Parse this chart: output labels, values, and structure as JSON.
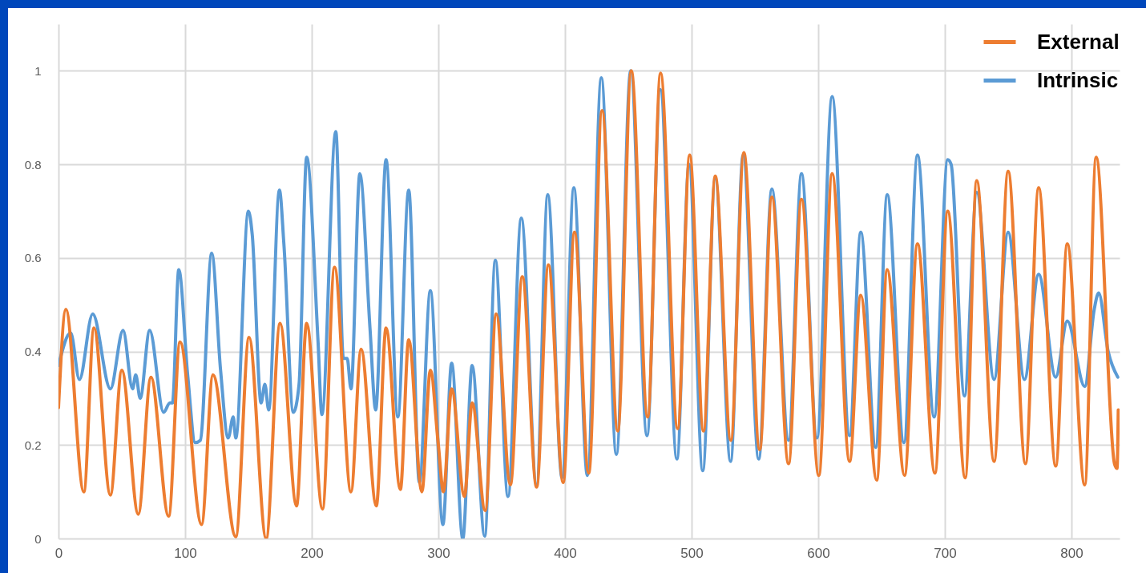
{
  "chart_data": {
    "type": "line",
    "xlim": [
      0,
      838
    ],
    "xticks": [
      0,
      100,
      200,
      300,
      400,
      500,
      600,
      700,
      800
    ],
    "ylim": [
      0,
      1.1
    ],
    "yticks": [
      0,
      0.2,
      0.4,
      0.6,
      0.8,
      1
    ],
    "grid": true,
    "legend": "top right",
    "line_style": "solid",
    "series": [
      {
        "name": "External",
        "color": "#ed7d31",
        "x": [
          0,
          5.8,
          20,
          28,
          41,
          50,
          63,
          73,
          87,
          96,
          113,
          122,
          140,
          150.5,
          164,
          175,
          188,
          196,
          208.5,
          218,
          231,
          239,
          251,
          258.7,
          270,
          276.6,
          287,
          293.7,
          300,
          304,
          310.5,
          320.6,
          326.7,
          337,
          345.7,
          356.9,
          366.3,
          377.6,
          386.9,
          398.6,
          407.5,
          418.8,
          429.3,
          441.7,
          452.4,
          465.3,
          475.5,
          489,
          498.5,
          509.4,
          518.7,
          531,
          541.3,
          553.8,
          563.4,
          576.6,
          586.8,
          600.5,
          611,
          624.8,
          633.6,
          646.2,
          654.5,
          668.2,
          678.4,
          692.2,
          702.3,
          716.1,
          725.2,
          738.9,
          750,
          763.7,
          774.1,
          787.6,
          796.7,
          810.5,
          819.5,
          834,
          836,
          837
        ],
        "values": [
          0.28,
          0.49,
          0.1,
          0.45,
          0.093,
          0.36,
          0.052,
          0.345,
          0.048,
          0.42,
          0.03,
          0.35,
          0.004,
          0.43,
          0,
          0.46,
          0.07,
          0.46,
          0.063,
          0.58,
          0.1,
          0.405,
          0.07,
          0.45,
          0.105,
          0.425,
          0.1,
          0.36,
          0.2,
          0.1,
          0.32,
          0.09,
          0.29,
          0.06,
          0.48,
          0.115,
          0.56,
          0.11,
          0.585,
          0.12,
          0.655,
          0.14,
          0.915,
          0.23,
          1.0,
          0.26,
          0.995,
          0.235,
          0.82,
          0.23,
          0.775,
          0.21,
          0.825,
          0.19,
          0.73,
          0.16,
          0.725,
          0.135,
          0.78,
          0.165,
          0.52,
          0.125,
          0.575,
          0.135,
          0.63,
          0.14,
          0.7,
          0.13,
          0.765,
          0.165,
          0.785,
          0.16,
          0.75,
          0.155,
          0.63,
          0.115,
          0.815,
          0.16,
          0.15,
          0.275
        ]
      },
      {
        "name": "Intrinsic",
        "color": "#5b9bd5",
        "x": [
          0,
          9.6,
          16.5,
          27,
          41,
          51,
          58.5,
          61,
          64.5,
          72,
          83,
          88,
          90,
          95,
          102,
          108,
          112,
          121,
          128,
          134,
          138,
          140,
          150,
          153,
          160,
          163,
          166,
          174.5,
          178,
          185.5,
          190,
          196,
          205,
          208,
          219,
          225,
          228,
          231,
          238,
          246,
          250.5,
          258.7,
          268,
          276.6,
          285,
          293.7,
          303.6,
          310.5,
          319.3,
          326.7,
          336.6,
          345,
          355,
          365.5,
          377.6,
          386.4,
          397.7,
          407,
          417.7,
          428.7,
          440.6,
          451.9,
          464.8,
          475.3,
          488.4,
          498,
          508.8,
          518.7,
          530.8,
          540.7,
          553,
          563.4,
          576.6,
          586.8,
          599,
          611,
          624.8,
          633.6,
          645.4,
          654.5,
          667.7,
          678.4,
          691.6,
          702.3,
          705,
          715.5,
          725.2,
          738.9,
          750,
          762.9,
          774.1,
          787.6,
          796.7,
          810.5,
          818,
          821.5,
          829,
          836.6
        ],
        "values": [
          0.37,
          0.44,
          0.34,
          0.48,
          0.32,
          0.445,
          0.32,
          0.35,
          0.3,
          0.445,
          0.27,
          0.29,
          0.29,
          0.575,
          0.35,
          0.205,
          0.21,
          0.61,
          0.36,
          0.215,
          0.26,
          0.215,
          0.7,
          0.65,
          0.29,
          0.33,
          0.275,
          0.745,
          0.63,
          0.27,
          0.33,
          0.815,
          0.42,
          0.265,
          0.87,
          0.385,
          0.385,
          0.32,
          0.78,
          0.45,
          0.275,
          0.81,
          0.26,
          0.745,
          0.12,
          0.53,
          0.03,
          0.375,
          0,
          0.37,
          0.005,
          0.595,
          0.09,
          0.685,
          0.115,
          0.735,
          0.13,
          0.75,
          0.135,
          0.985,
          0.18,
          1.0,
          0.22,
          0.96,
          0.17,
          0.8,
          0.145,
          0.77,
          0.165,
          0.82,
          0.17,
          0.747,
          0.21,
          0.78,
          0.215,
          0.945,
          0.22,
          0.655,
          0.195,
          0.735,
          0.205,
          0.82,
          0.26,
          0.81,
          0.8,
          0.305,
          0.74,
          0.34,
          0.655,
          0.34,
          0.565,
          0.345,
          0.465,
          0.325,
          0.49,
          0.525,
          0.4,
          0.345
        ]
      }
    ]
  }
}
